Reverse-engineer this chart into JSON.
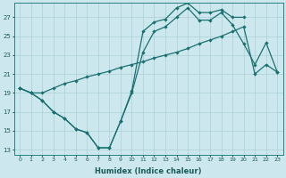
{
  "xlabel": "Humidex (Indice chaleur)",
  "bg_color": "#cce8ee",
  "grid_color": "#aad0d8",
  "line_color": "#1a7070",
  "xlim": [
    -0.5,
    23.5
  ],
  "ylim": [
    12.5,
    28.5
  ],
  "xticks": [
    0,
    1,
    2,
    3,
    4,
    5,
    6,
    7,
    8,
    9,
    10,
    11,
    12,
    13,
    14,
    15,
    16,
    17,
    18,
    19,
    20,
    21,
    22,
    23
  ],
  "yticks": [
    13,
    15,
    17,
    19,
    21,
    23,
    25,
    27
  ],
  "line1_x": [
    0,
    1,
    2,
    3,
    4,
    5,
    6,
    7,
    8,
    9,
    10,
    11,
    12,
    13,
    14,
    15,
    16,
    17,
    18,
    19,
    20
  ],
  "line1_y": [
    19.5,
    19.0,
    18.2,
    17.0,
    16.3,
    15.2,
    14.8,
    13.2,
    13.2,
    16.0,
    19.2,
    25.5,
    26.5,
    26.8,
    28.0,
    28.5,
    27.5,
    27.5,
    27.8,
    27.0,
    27.0
  ],
  "line2_x": [
    0,
    1,
    2,
    3,
    4,
    5,
    6,
    7,
    8,
    9,
    10,
    11,
    12,
    13,
    14,
    15,
    16,
    17,
    18,
    19,
    20,
    21,
    22,
    23
  ],
  "line2_y": [
    19.5,
    19.0,
    18.2,
    17.0,
    16.3,
    15.2,
    14.8,
    13.2,
    13.2,
    16.0,
    19.0,
    23.3,
    25.5,
    26.0,
    27.0,
    28.0,
    26.7,
    26.7,
    27.5,
    26.2,
    24.2,
    22.0,
    24.3,
    21.2
  ],
  "line3_x": [
    0,
    1,
    2,
    3,
    4,
    5,
    6,
    7,
    8,
    9,
    10,
    11,
    12,
    13,
    14,
    15,
    16,
    17,
    18,
    19,
    20,
    21,
    22,
    23
  ],
  "line3_y": [
    19.5,
    19.0,
    19.0,
    19.5,
    20.0,
    20.3,
    20.7,
    21.0,
    21.3,
    21.7,
    22.0,
    22.3,
    22.7,
    23.0,
    23.3,
    23.7,
    24.2,
    24.6,
    25.0,
    25.5,
    26.0,
    21.0,
    22.0,
    21.2
  ]
}
